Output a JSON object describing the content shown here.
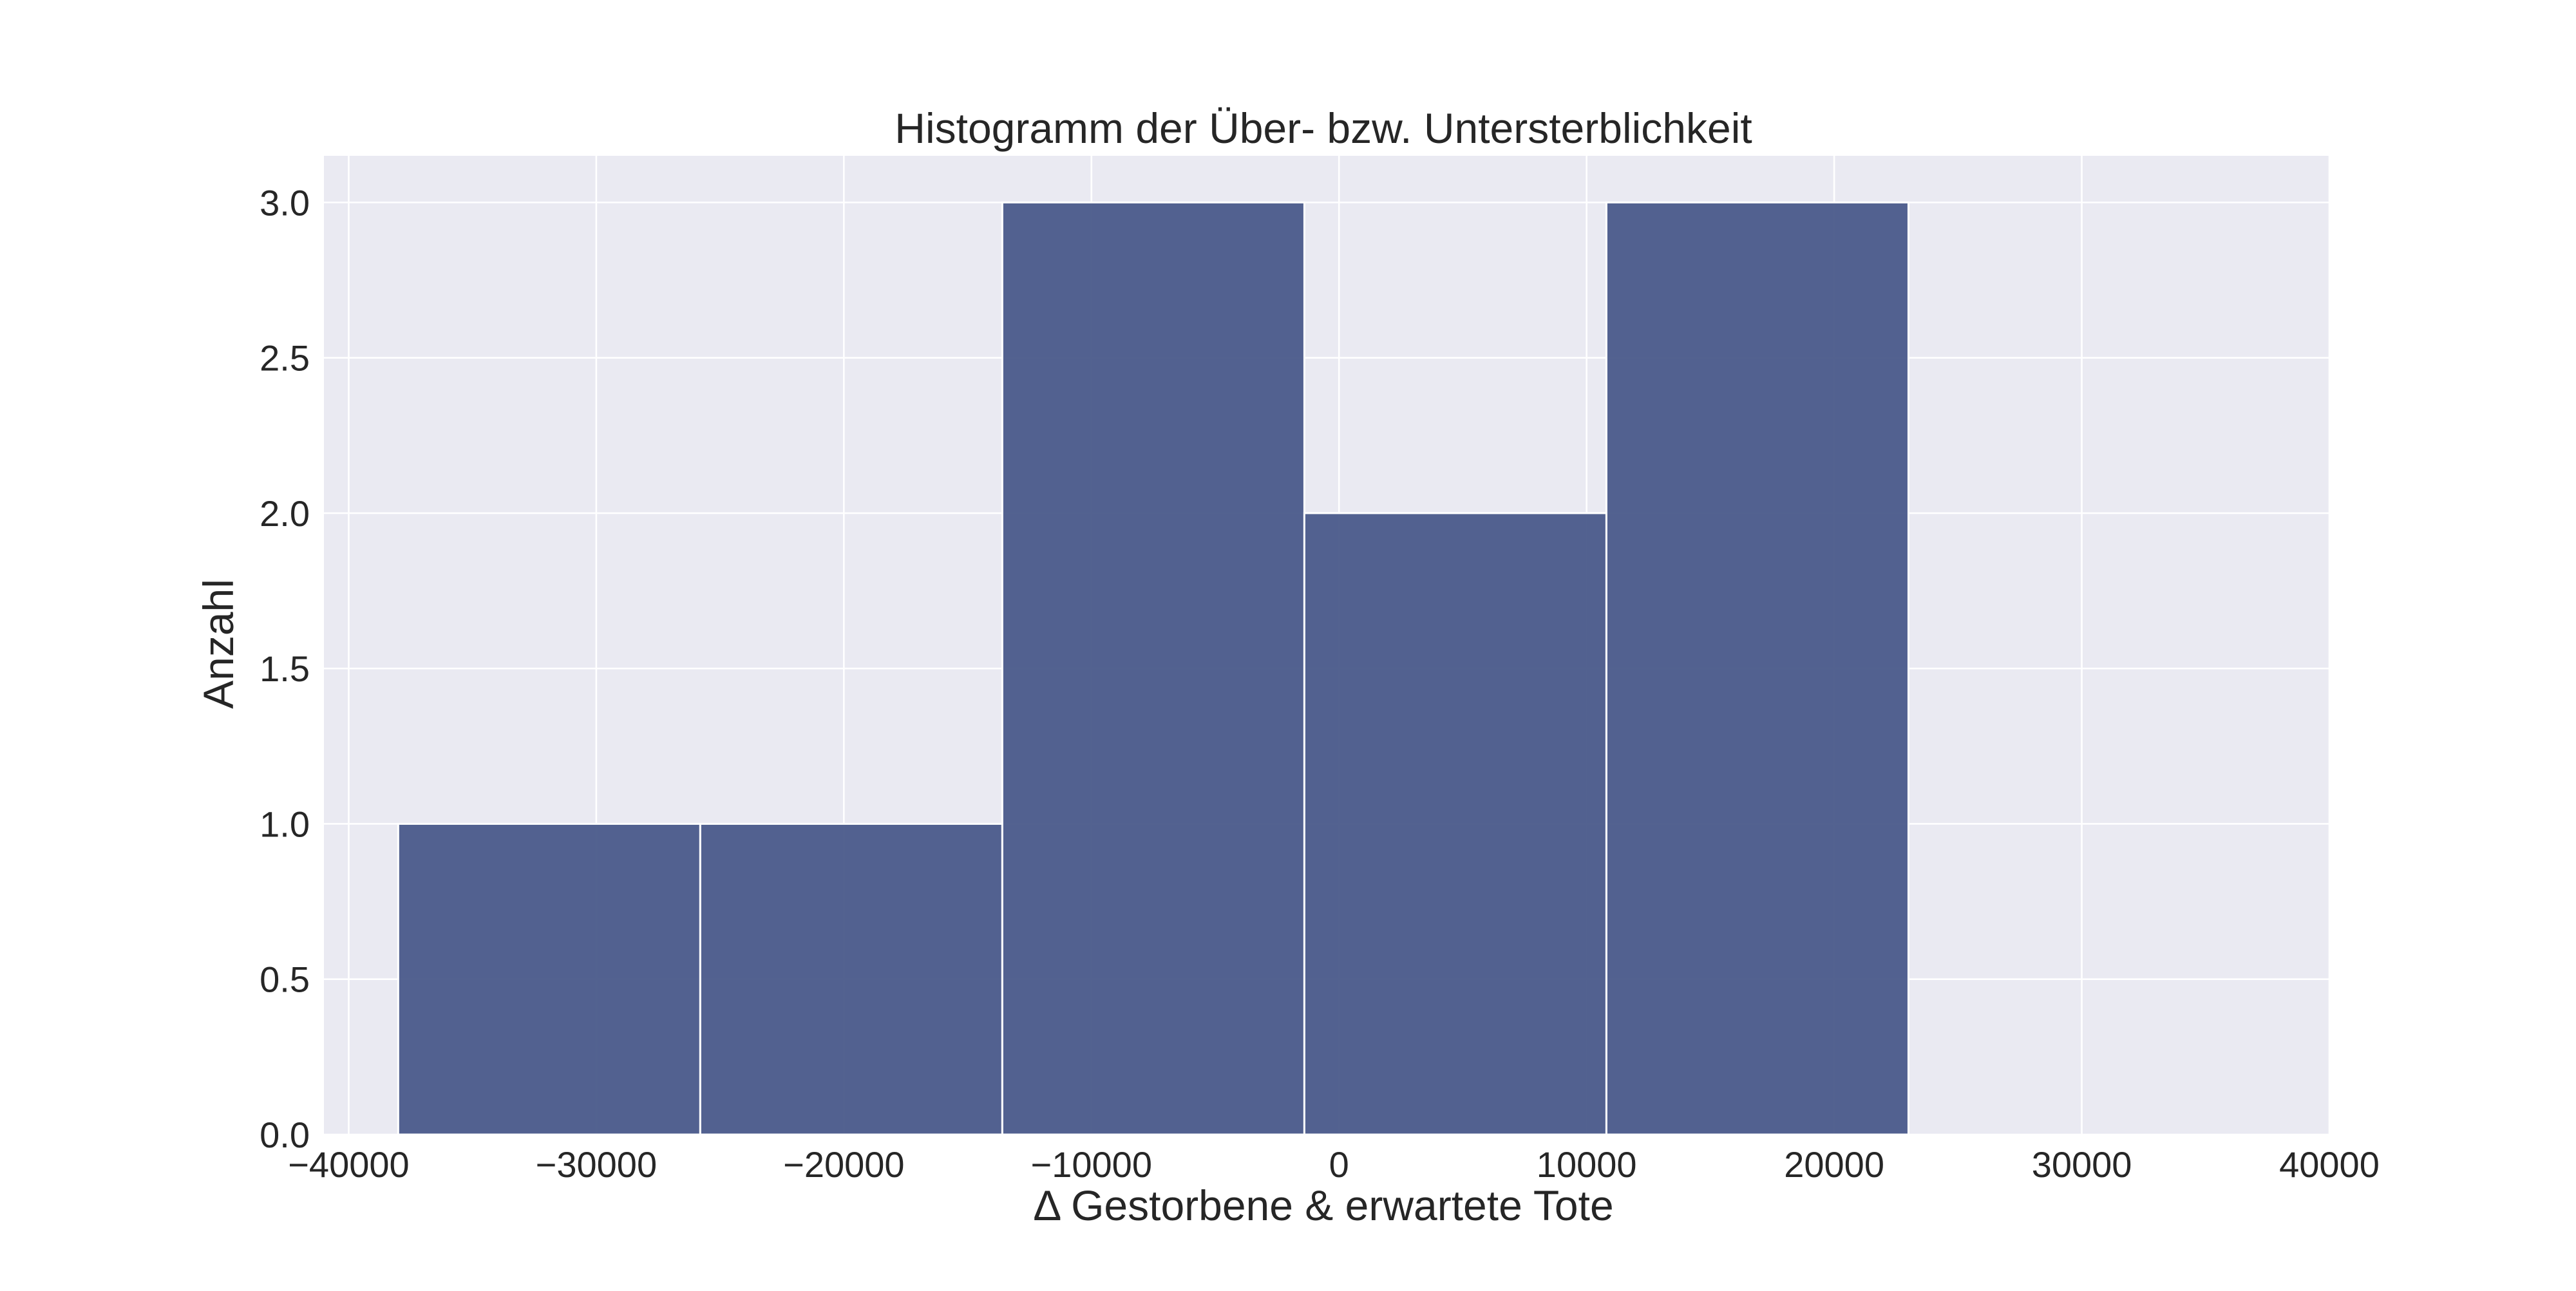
{
  "chart_data": {
    "type": "bar",
    "title": "Histogramm der Über- bzw. Untersterblichkeit",
    "xlabel": "Δ Gestorbene & erwartete Tote",
    "ylabel": "Anzahl",
    "xlim": [
      -41000,
      40000
    ],
    "ylim": [
      0,
      3.15
    ],
    "xticks": [
      -40000,
      -30000,
      -20000,
      -10000,
      0,
      10000,
      20000,
      30000,
      40000
    ],
    "xtick_labels": [
      "−40000",
      "−30000",
      "−20000",
      "−10000",
      "0",
      "10000",
      "20000",
      "30000",
      "40000"
    ],
    "yticks": [
      0,
      0.5,
      1.0,
      1.5,
      2.0,
      2.5,
      3.0
    ],
    "ytick_labels": [
      "0.0",
      "0.5",
      "1.0",
      "1.5",
      "2.0",
      "2.5",
      "3.0"
    ],
    "bins": [
      {
        "x_start": -38000,
        "x_end": -25800,
        "count": 1
      },
      {
        "x_start": -25800,
        "x_end": -13600,
        "count": 1
      },
      {
        "x_start": -13600,
        "x_end": -1400,
        "count": 3
      },
      {
        "x_start": -1400,
        "x_end": 10800,
        "count": 2
      },
      {
        "x_start": 10800,
        "x_end": 23000,
        "count": 3
      }
    ],
    "grid": true,
    "colors": {
      "bar": "#4a5a8a",
      "plot_background": "#eaeaf2",
      "grid": "#ffffff"
    }
  }
}
